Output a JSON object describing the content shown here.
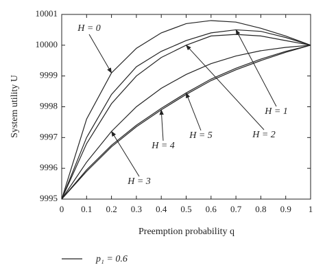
{
  "chart_data": {
    "type": "line",
    "xlabel": "Preemption probability q",
    "ylabel": "System utility U",
    "x": [
      0,
      0.1,
      0.2,
      0.3,
      0.4,
      0.5,
      0.6,
      0.7,
      0.8,
      0.9,
      1
    ],
    "series": [
      {
        "name": "H = 0",
        "color": "#222222",
        "values": [
          9995,
          9997.6,
          9999.1,
          9999.9,
          10000.4,
          10000.7,
          10000.8,
          10000.75,
          10000.55,
          10000.3,
          10000
        ]
      },
      {
        "name": "H = 1",
        "color": "#222222",
        "values": [
          9995,
          9997.0,
          9998.4,
          9999.3,
          9999.8,
          10000.15,
          10000.4,
          10000.5,
          10000.45,
          10000.25,
          10000
        ]
      },
      {
        "name": "H = 2",
        "color": "#222222",
        "values": [
          9995,
          9996.8,
          9998.1,
          9999.0,
          9999.6,
          10000.0,
          10000.3,
          10000.35,
          10000.3,
          10000.15,
          10000
        ]
      },
      {
        "name": "H = 3",
        "color": "#222222",
        "values": [
          9995,
          9996.2,
          9997.2,
          9998.0,
          9998.6,
          9999.05,
          9999.4,
          9999.65,
          9999.82,
          9999.93,
          10000
        ]
      },
      {
        "name": "H = 4",
        "color": "#222222",
        "values": [
          9995,
          9995.9,
          9996.7,
          9997.35,
          9997.9,
          9998.4,
          9998.85,
          9999.2,
          9999.5,
          9999.77,
          10000
        ]
      },
      {
        "name": "H = 5",
        "color": "#222222",
        "values": [
          9995,
          9995.95,
          9996.75,
          9997.4,
          9997.95,
          9998.45,
          9998.9,
          9999.25,
          9999.55,
          9999.8,
          10000
        ]
      }
    ],
    "legend": "p₁ = 0.6",
    "xlim": [
      0,
      1
    ],
    "xticks": [
      0,
      0.1,
      0.2,
      0.3,
      0.4,
      0.5,
      0.6,
      0.7,
      0.8,
      0.9,
      1
    ],
    "ylim": [
      9995,
      10001
    ],
    "yticks": [
      9995,
      9996,
      9997,
      9998,
      9999,
      10000,
      10001
    ],
    "grid": false
  }
}
